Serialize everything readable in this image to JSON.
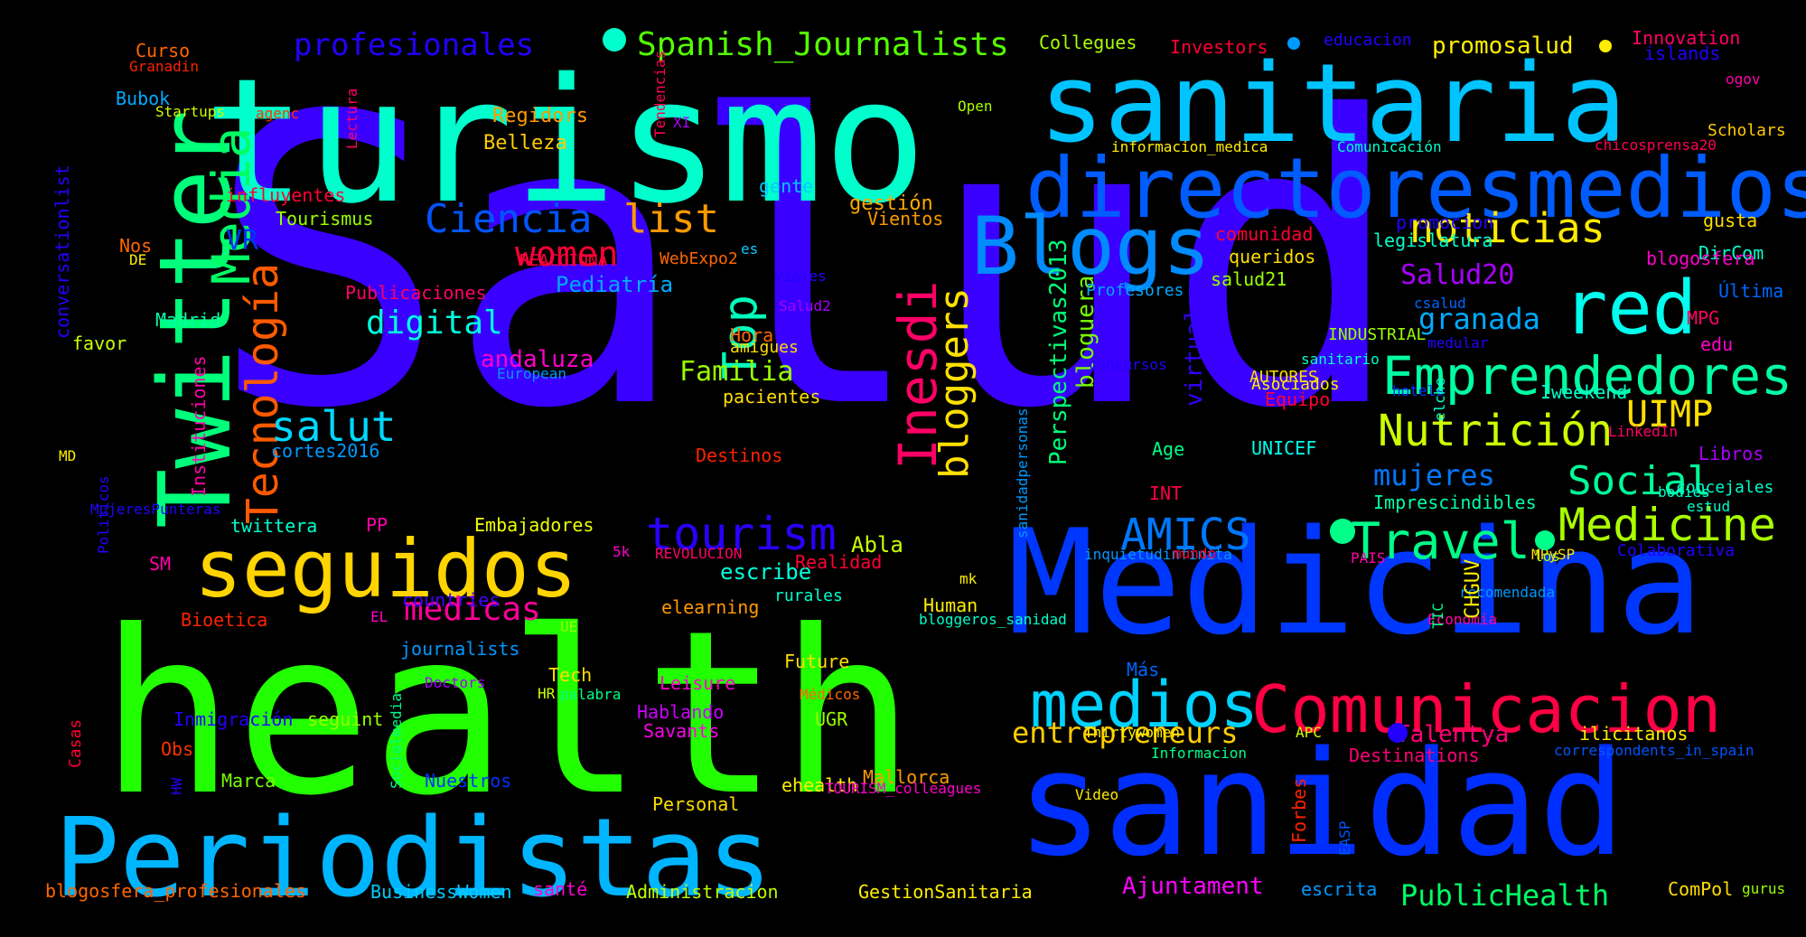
{
  "words": [
    {
      "text": "Salud",
      "color": "#3a00ff"
    },
    {
      "text": "health",
      "color": "#22ff00"
    },
    {
      "text": "turismo",
      "color": "#00ffcc"
    },
    {
      "text": "Medicina",
      "color": "#0037ff"
    },
    {
      "text": "sanidad",
      "color": "#002eff"
    },
    {
      "text": "Periodistas",
      "color": "#00b5ff"
    },
    {
      "text": "sanitaria",
      "color": "#00c4ff"
    },
    {
      "text": "Twitter",
      "color": "#00ff7a"
    },
    {
      "text": "directoresmedios",
      "color": "#005cff"
    },
    {
      "text": "seguidos",
      "color": "#ffd400"
    },
    {
      "text": "Blogs",
      "color": "#008cff"
    },
    {
      "text": "Comunicacion",
      "color": "#ff0044"
    },
    {
      "text": "medios",
      "color": "#00d2ff"
    },
    {
      "text": "red",
      "color": "#00ffee"
    },
    {
      "text": "Emprendedores",
      "color": "#00ffa2"
    },
    {
      "text": "Media",
      "color": "#00ff66"
    },
    {
      "text": "Tecnología",
      "color": "#ff5a00"
    },
    {
      "text": "Inesdi",
      "color": "#ff0066"
    },
    {
      "text": "Travel",
      "color": "#00ff88"
    },
    {
      "text": "Medicine",
      "color": "#aaff00"
    },
    {
      "text": "noticias",
      "color": "#ffea00"
    },
    {
      "text": "Nutrición",
      "color": "#ccff00"
    },
    {
      "text": "bloggers",
      "color": "#ffe000"
    },
    {
      "text": "tourism",
      "color": "#2a00ff"
    },
    {
      "text": "AMICS",
      "color": "#0077ff"
    },
    {
      "text": "Top",
      "color": "#00ffbb"
    },
    {
      "text": "salut",
      "color": "#00d8ff"
    },
    {
      "text": "Social",
      "color": "#00ff99"
    },
    {
      "text": "Ciencia",
      "color": "#0055ff"
    },
    {
      "text": "Spanish_Journalists",
      "color": "#55ff00"
    },
    {
      "text": "list",
      "color": "#ff9900"
    },
    {
      "text": "women",
      "color": "#ff0033"
    },
    {
      "text": "UIMP",
      "color": "#ffdd00"
    },
    {
      "text": "medicas",
      "color": "#ff0099"
    },
    {
      "text": "digital",
      "color": "#00ffdd"
    },
    {
      "text": "entrepreneurs",
      "color": "#ffcc00"
    },
    {
      "text": "granada",
      "color": "#00aaff"
    },
    {
      "text": "mujeres",
      "color": "#0077ff"
    },
    {
      "text": "Salud20",
      "color": "#aa00ff"
    },
    {
      "text": "profesionales",
      "color": "#2200ff"
    },
    {
      "text": "Talentya",
      "color": "#ff0077"
    },
    {
      "text": "PublicHealth",
      "color": "#00ff66"
    },
    {
      "text": "VR",
      "color": "#0033ff"
    },
    {
      "text": "Familia",
      "color": "#99ff00"
    },
    {
      "text": "andaluza",
      "color": "#ff00cc"
    },
    {
      "text": "virtual",
      "color": "#3300ff"
    },
    {
      "text": "bloguera",
      "color": "#77ff00"
    },
    {
      "text": "Perspectivas2013",
      "color": "#00ff77"
    },
    {
      "text": "promosalud",
      "color": "#ffee00"
    },
    {
      "text": "Pediatría",
      "color": "#00aaff"
    },
    {
      "text": "Abla",
      "color": "#ccff00"
    },
    {
      "text": "escribe",
      "color": "#00ffdd"
    },
    {
      "text": "Ajuntament",
      "color": "#ff00ff"
    },
    {
      "text": "Destinations",
      "color": "#ff0077"
    },
    {
      "text": "Imprescindibles",
      "color": "#00ffaa"
    },
    {
      "text": "Iweekend",
      "color": "#00ffcc"
    },
    {
      "text": "gestión",
      "color": "#ffaa00"
    },
    {
      "text": "Regidors",
      "color": "#ff9900"
    },
    {
      "text": "Belleza",
      "color": "#ffcc00"
    },
    {
      "text": "influyentes",
      "color": "#ff0033"
    },
    {
      "text": "Tourismus",
      "color": "#99ff00"
    },
    {
      "text": "Madrid",
      "color": "#00ffaa"
    },
    {
      "text": "cortes2016",
      "color": "#0099ff"
    },
    {
      "text": "Destinos",
      "color": "#ff2200"
    },
    {
      "text": "pacientes",
      "color": "#ffdd00"
    },
    {
      "text": "Hora",
      "color": "#ff6600"
    },
    {
      "text": "Embajadores",
      "color": "#eeff00"
    },
    {
      "text": "twittera",
      "color": "#00ffcc"
    },
    {
      "text": "PP",
      "color": "#ff00aa"
    },
    {
      "text": "SM",
      "color": "#ff00aa"
    },
    {
      "text": "Bioetica",
      "color": "#ff2200"
    },
    {
      "text": "countries",
      "color": "#4400ff"
    },
    {
      "text": "Realidad",
      "color": "#ff0033"
    },
    {
      "text": "Human",
      "color": "#ffee00"
    },
    {
      "text": "Future",
      "color": "#ffdd00"
    },
    {
      "text": "Tech",
      "color": "#ffdd00"
    },
    {
      "text": "Leisure",
      "color": "#ff00cc"
    },
    {
      "text": "Hablando",
      "color": "#cc00ff"
    },
    {
      "text": "Savants",
      "color": "#ff00ee"
    },
    {
      "text": "UGR",
      "color": "#99ff00"
    },
    {
      "text": "seguint",
      "color": "#99ff00"
    },
    {
      "text": "Marca",
      "color": "#77ff00"
    },
    {
      "text": "Nuestros",
      "color": "#0033ff"
    },
    {
      "text": "ehealth",
      "color": "#ffee00"
    },
    {
      "text": "Mallorca",
      "color": "#ff9900"
    },
    {
      "text": "Administracion",
      "color": "#bbff00"
    },
    {
      "text": "GestionSanitaria",
      "color": "#ffee00"
    },
    {
      "text": "BusinessWomen",
      "color": "#00ccff"
    },
    {
      "text": "blogosfera_profesionales",
      "color": "#ff6600"
    },
    {
      "text": "santé",
      "color": "#ff00cc"
    },
    {
      "text": "escrita",
      "color": "#0099ff"
    },
    {
      "text": "ComPol",
      "color": "#ffdd00"
    },
    {
      "text": "gurus",
      "color": "#99ff00"
    },
    {
      "text": "ilicitanos",
      "color": "#ffee00"
    },
    {
      "text": "correspondents_in_spain",
      "color": "#0055ff"
    },
    {
      "text": "Colaborativa",
      "color": "#2200ff"
    },
    {
      "text": "UNICEF",
      "color": "#00ffee"
    },
    {
      "text": "Equipo",
      "color": "#ff0033"
    },
    {
      "text": "Age",
      "color": "#00ff88"
    },
    {
      "text": "INT",
      "color": "#ff0044"
    },
    {
      "text": "Libros",
      "color": "#aa00ff"
    },
    {
      "text": "edu",
      "color": "#ff00cc"
    },
    {
      "text": "MPG",
      "color": "#ff0066"
    },
    {
      "text": "Última",
      "color": "#0066ff"
    },
    {
      "text": "DirCom",
      "color": "#00ffcc"
    },
    {
      "text": "gusta",
      "color": "#ffdd00"
    },
    {
      "text": "blogosfera",
      "color": "#ff00cc"
    },
    {
      "text": "legislatura",
      "color": "#00ffcc"
    },
    {
      "text": "promocion",
      "color": "#2200ff"
    },
    {
      "text": "comunidad",
      "color": "#ff0033"
    },
    {
      "text": "queridos",
      "color": "#ffdd00"
    },
    {
      "text": "salud21",
      "color": "#99ff00"
    },
    {
      "text": "INDUSTRIAL",
      "color": "#99ff00"
    },
    {
      "text": "Investors",
      "color": "#ff0033"
    },
    {
      "text": "educacion",
      "color": "#2200ff"
    },
    {
      "text": "Innovation",
      "color": "#ff0066"
    },
    {
      "text": "islands",
      "color": "#2200ff"
    },
    {
      "text": "ogov",
      "color": "#ff00aa"
    },
    {
      "text": "Scholars",
      "color": "#ffcc00"
    },
    {
      "text": "chicosprensa20",
      "color": "#ff0055"
    },
    {
      "text": "Comunicación",
      "color": "#00ffcc"
    },
    {
      "text": "informacion_medica",
      "color": "#ffee00"
    },
    {
      "text": "Collegues",
      "color": "#aaff00"
    },
    {
      "text": "Open",
      "color": "#aaff00"
    },
    {
      "text": "Curso",
      "color": "#ff6600"
    },
    {
      "text": "Granadin",
      "color": "#ff2200"
    },
    {
      "text": "Bubok",
      "color": "#00aaff"
    },
    {
      "text": "Startups",
      "color": "#ccff00"
    },
    {
      "text": "agenc",
      "color": "#ff3300"
    },
    {
      "text": "Lectura",
      "color": "#ff0066"
    },
    {
      "text": "Tendencias",
      "color": "#ff0055"
    },
    {
      "text": "XI",
      "color": "#aa00ff"
    },
    {
      "text": "gente",
      "color": "#00ccff"
    },
    {
      "text": "Vientos",
      "color": "#ff9900"
    },
    {
      "text": "WebExpo2",
      "color": "#ff6600"
    },
    {
      "text": "REACCIONA",
      "color": "#ff0044"
    },
    {
      "text": "es",
      "color": "#00ccff"
    },
    {
      "text": "Nos",
      "color": "#ff6600"
    },
    {
      "text": "DE",
      "color": "#ffee00"
    },
    {
      "text": "Publicaciones",
      "color": "#ff0066"
    },
    {
      "text": "conversationlist",
      "color": "#2200ff"
    },
    {
      "text": "favor",
      "color": "#ccff00"
    },
    {
      "text": "Instituciones",
      "color": "#ff00aa"
    },
    {
      "text": "European",
      "color": "#0099ff"
    },
    {
      "text": "amigues",
      "color": "#ffdd00"
    },
    {
      "text": "viajes",
      "color": "#2200ff"
    },
    {
      "text": "Salud2",
      "color": "#aa00ff"
    },
    {
      "text": "Profesores",
      "color": "#00aaff"
    },
    {
      "text": "concursos",
      "color": "#2200ff"
    },
    {
      "text": "csalud",
      "color": "#0066ff"
    },
    {
      "text": "medular",
      "color": "#2200ff"
    },
    {
      "text": "sanitario",
      "color": "#00ffcc"
    },
    {
      "text": "AUTORES",
      "color": "#ffdd00"
    },
    {
      "text": "Asociados",
      "color": "#ffee00"
    },
    {
      "text": "hotels",
      "color": "#0033ff"
    },
    {
      "text": "LinkedIn",
      "color": "#ff0066"
    },
    {
      "text": "elche",
      "color": "#00ffcc"
    },
    {
      "text": "concejales",
      "color": "#00ffcc"
    },
    {
      "text": "estud",
      "color": "#00ffcc"
    },
    {
      "text": "los",
      "color": "#aaff00"
    },
    {
      "text": "bodies",
      "color": "#00ffcc"
    },
    {
      "text": "MD",
      "color": "#ffee00"
    },
    {
      "text": "MujeresPunteras",
      "color": "#2200ff"
    },
    {
      "text": "Politicos",
      "color": "#2200ff"
    },
    {
      "text": "Casas",
      "color": "#ff0033"
    },
    {
      "text": "5k",
      "color": "#ff00cc"
    },
    {
      "text": "REVOLUCION",
      "color": "#ff0066"
    },
    {
      "text": "elearning",
      "color": "#ff9900"
    },
    {
      "text": "rurales",
      "color": "#00ffcc"
    },
    {
      "text": "mk",
      "color": "#ffee00"
    },
    {
      "text": "bloggeros_sanidad",
      "color": "#00ffcc"
    },
    {
      "text": "sanidadpersonas",
      "color": "#0099ff"
    },
    {
      "text": "inquietudinfinita",
      "color": "#0099ff"
    },
    {
      "text": "mundo",
      "color": "#ff0033"
    },
    {
      "text": "PAIS",
      "color": "#ff00aa"
    },
    {
      "text": "MPySP",
      "color": "#ffdd00"
    },
    {
      "text": "recomendada",
      "color": "#0099ff"
    },
    {
      "text": "Economía",
      "color": "#ff00aa"
    },
    {
      "text": "TIC",
      "color": "#00ff88"
    },
    {
      "text": "CHGUV",
      "color": "#ffee00"
    },
    {
      "text": "EL",
      "color": "#ff00cc"
    },
    {
      "text": "journalists",
      "color": "#0099ff"
    },
    {
      "text": "Doctors",
      "color": "#aa00ff"
    },
    {
      "text": "palabra",
      "color": "#00ff88"
    },
    {
      "text": "UE",
      "color": "#99ff00"
    },
    {
      "text": "HR",
      "color": "#ccff00"
    },
    {
      "text": "Médicos",
      "color": "#ff6600"
    },
    {
      "text": "Inmigración",
      "color": "#2200ff"
    },
    {
      "text": "Obs",
      "color": "#ff3300"
    },
    {
      "text": "Más",
      "color": "#0066ff"
    },
    {
      "text": "Socialmedia",
      "color": "#00ff88"
    },
    {
      "text": "HW",
      "color": "#2200ff"
    },
    {
      "text": "Personal",
      "color": "#ffdd00"
    },
    {
      "text": "TOURISM_colleagues",
      "color": "#ff00cc"
    },
    {
      "text": "Thirtywomen",
      "color": "#ffee00"
    },
    {
      "text": "APC",
      "color": "#ccff00"
    },
    {
      "text": "Informacion",
      "color": "#00ff88"
    },
    {
      "text": "Video",
      "color": "#ffee00"
    },
    {
      "text": "Forbes",
      "color": "#ff2200"
    },
    {
      "text": "EASP",
      "color": "#0055ff"
    }
  ]
}
